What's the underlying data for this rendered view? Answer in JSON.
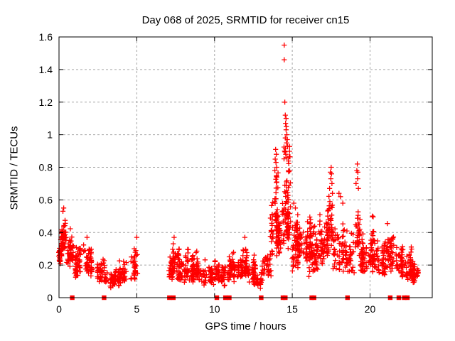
{
  "window": {
    "title": "Day 068 of 2025, SRMTID for receiver cn15"
  },
  "chart": {
    "title": "Day 068 of 2025, SRMTID for receiver cn15",
    "xlabel": "GPS time / hours",
    "ylabel": "SRMTID / TECUs"
  },
  "colors": {
    "marker": "#ff0000",
    "axis": "#000000",
    "grid": "#a6a6a6",
    "background": "#ffffff",
    "text": "#000000"
  },
  "chart_data": {
    "type": "scatter",
    "marker_style": "plus",
    "title": "Day 068 of 2025, SRMTID for receiver cn15",
    "xlabel": "GPS time / hours",
    "ylabel": "SRMTID / TECUs",
    "xlim": [
      0,
      24
    ],
    "ylim": [
      0,
      1.6
    ],
    "xticks": [
      {
        "v": 0,
        "label": "0"
      },
      {
        "v": 5,
        "label": "5"
      },
      {
        "v": 10,
        "label": "10"
      },
      {
        "v": 15,
        "label": "15"
      },
      {
        "v": 20,
        "label": "20"
      }
    ],
    "yticks": [
      {
        "v": 0,
        "label": "0"
      },
      {
        "v": 0.2,
        "label": "0.2"
      },
      {
        "v": 0.4,
        "label": "0.4"
      },
      {
        "v": 0.6,
        "label": "0.6"
      },
      {
        "v": 0.8,
        "label": "0.8"
      },
      {
        "v": 1.0,
        "label": "1"
      },
      {
        "v": 1.2,
        "label": "1.2"
      },
      {
        "v": 1.4,
        "label": "1.4"
      },
      {
        "v": 1.6,
        "label": "1.6"
      }
    ],
    "grid": true,
    "legend": "none",
    "outlier_points": [
      [
        14.48,
        1.55
      ],
      [
        14.48,
        1.46
      ],
      [
        14.52,
        1.2
      ],
      [
        14.55,
        1.12
      ],
      [
        14.6,
        1.1
      ],
      [
        14.57,
        1.07
      ],
      [
        14.62,
        1.05
      ],
      [
        14.6,
        1.03
      ],
      [
        14.65,
        1.0
      ],
      [
        14.55,
        0.98
      ],
      [
        14.68,
        0.97
      ],
      [
        14.63,
        0.95
      ],
      [
        14.7,
        0.93
      ],
      [
        14.5,
        0.9
      ],
      [
        14.58,
        0.88
      ],
      [
        14.66,
        0.86
      ],
      [
        13.93,
        0.91
      ],
      [
        13.97,
        0.88
      ],
      [
        13.9,
        0.85
      ],
      [
        13.95,
        0.83
      ],
      [
        14.0,
        0.8
      ],
      [
        13.88,
        0.78
      ],
      [
        19.18,
        0.82
      ],
      [
        19.15,
        0.78
      ],
      [
        19.22,
        0.77
      ],
      [
        19.2,
        0.73
      ],
      [
        19.1,
        0.7
      ],
      [
        19.25,
        0.67
      ],
      [
        17.5,
        0.8
      ],
      [
        17.45,
        0.77
      ],
      [
        17.52,
        0.76
      ],
      [
        17.48,
        0.73
      ],
      [
        17.55,
        0.7
      ],
      [
        17.4,
        0.67
      ],
      [
        17.58,
        0.64
      ],
      [
        18.0,
        0.64
      ],
      [
        18.1,
        0.62
      ],
      [
        18.25,
        0.58
      ],
      [
        15.1,
        0.58
      ],
      [
        15.2,
        0.55
      ],
      [
        16.07,
        0.13
      ],
      [
        16.12,
        0.16
      ],
      [
        0.3,
        0.55
      ],
      [
        0.25,
        0.53
      ],
      [
        5.0,
        0.37
      ],
      [
        7.4,
        0.37
      ],
      [
        11.95,
        0.37
      ],
      [
        1.8,
        0.37
      ]
    ],
    "clusters": [
      {
        "x": [
          0.0,
          0.15
        ],
        "y": [
          0.2,
          0.32
        ],
        "n": 25
      },
      {
        "x": [
          0.15,
          0.55
        ],
        "y": [
          0.25,
          0.53
        ],
        "n": 60
      },
      {
        "x": [
          0.5,
          0.95
        ],
        "y": [
          0.18,
          0.45
        ],
        "n": 45
      },
      {
        "x": [
          0.95,
          1.5
        ],
        "y": [
          0.1,
          0.33
        ],
        "n": 50
      },
      {
        "x": [
          1.5,
          2.2
        ],
        "y": [
          0.12,
          0.36
        ],
        "n": 55
      },
      {
        "x": [
          2.2,
          3.1
        ],
        "y": [
          0.08,
          0.26
        ],
        "n": 55
      },
      {
        "x": [
          3.1,
          3.9
        ],
        "y": [
          0.06,
          0.2
        ],
        "n": 50
      },
      {
        "x": [
          3.9,
          4.6
        ],
        "y": [
          0.07,
          0.24
        ],
        "n": 45
      },
      {
        "x": [
          4.6,
          5.2
        ],
        "y": [
          0.1,
          0.35
        ],
        "n": 40
      },
      {
        "x": [
          7.0,
          7.35
        ],
        "y": [
          0.1,
          0.27
        ],
        "n": 30
      },
      {
        "x": [
          7.3,
          7.55
        ],
        "y": [
          0.13,
          0.36
        ],
        "n": 25
      },
      {
        "x": [
          7.55,
          8.1
        ],
        "y": [
          0.08,
          0.31
        ],
        "n": 45
      },
      {
        "x": [
          8.1,
          8.6
        ],
        "y": [
          0.1,
          0.33
        ],
        "n": 40
      },
      {
        "x": [
          8.6,
          9.1
        ],
        "y": [
          0.08,
          0.3
        ],
        "n": 40
      },
      {
        "x": [
          9.1,
          10.15
        ],
        "y": [
          0.07,
          0.24
        ],
        "n": 70
      },
      {
        "x": [
          10.15,
          10.75
        ],
        "y": [
          0.07,
          0.21
        ],
        "n": 45
      },
      {
        "x": [
          10.75,
          11.25
        ],
        "y": [
          0.09,
          0.3
        ],
        "n": 45
      },
      {
        "x": [
          11.25,
          11.8
        ],
        "y": [
          0.1,
          0.28
        ],
        "n": 40
      },
      {
        "x": [
          11.8,
          12.1
        ],
        "y": [
          0.12,
          0.35
        ],
        "n": 30
      },
      {
        "x": [
          12.1,
          12.6
        ],
        "y": [
          0.08,
          0.28
        ],
        "n": 40
      },
      {
        "x": [
          12.6,
          13.1
        ],
        "y": [
          0.05,
          0.17
        ],
        "n": 35
      },
      {
        "x": [
          13.1,
          13.6
        ],
        "y": [
          0.1,
          0.35
        ],
        "n": 40
      },
      {
        "x": [
          13.6,
          14.05
        ],
        "y": [
          0.25,
          0.7
        ],
        "n": 55
      },
      {
        "x": [
          13.85,
          14.05
        ],
        "y": [
          0.62,
          0.8
        ],
        "n": 10
      },
      {
        "x": [
          14.05,
          14.35
        ],
        "y": [
          0.25,
          0.55
        ],
        "n": 30
      },
      {
        "x": [
          14.35,
          14.85
        ],
        "y": [
          0.25,
          0.85
        ],
        "n": 90
      },
      {
        "x": [
          14.5,
          14.8
        ],
        "y": [
          0.78,
          1.0
        ],
        "n": 10
      },
      {
        "x": [
          14.85,
          15.35
        ],
        "y": [
          0.15,
          0.58
        ],
        "n": 45
      },
      {
        "x": [
          15.35,
          16.25
        ],
        "y": [
          0.18,
          0.55
        ],
        "n": 110
      },
      {
        "x": [
          16.25,
          16.6
        ],
        "y": [
          0.15,
          0.5
        ],
        "n": 45
      },
      {
        "x": [
          16.6,
          17.3
        ],
        "y": [
          0.2,
          0.55
        ],
        "n": 60
      },
      {
        "x": [
          17.3,
          17.65
        ],
        "y": [
          0.3,
          0.72
        ],
        "n": 35
      },
      {
        "x": [
          17.65,
          18.4
        ],
        "y": [
          0.15,
          0.52
        ],
        "n": 55
      },
      {
        "x": [
          18.4,
          18.95
        ],
        "y": [
          0.12,
          0.45
        ],
        "n": 45
      },
      {
        "x": [
          18.95,
          19.35
        ],
        "y": [
          0.25,
          0.66
        ],
        "n": 35
      },
      {
        "x": [
          19.35,
          20.1
        ],
        "y": [
          0.12,
          0.45
        ],
        "n": 60
      },
      {
        "x": [
          20.1,
          20.45
        ],
        "y": [
          0.15,
          0.55
        ],
        "n": 35
      },
      {
        "x": [
          20.45,
          21.1
        ],
        "y": [
          0.12,
          0.4
        ],
        "n": 55
      },
      {
        "x": [
          21.1,
          21.6
        ],
        "y": [
          0.15,
          0.48
        ],
        "n": 45
      },
      {
        "x": [
          21.6,
          22.2
        ],
        "y": [
          0.12,
          0.42
        ],
        "n": 50
      },
      {
        "x": [
          22.2,
          22.75
        ],
        "y": [
          0.1,
          0.32
        ],
        "n": 50
      },
      {
        "x": [
          22.75,
          23.1
        ],
        "y": [
          0.08,
          0.22
        ],
        "n": 30
      }
    ],
    "zero_markers_x": [
      0.85,
      2.9,
      7.1,
      7.35,
      10.15,
      10.7,
      10.95,
      13.0,
      14.4,
      14.55,
      16.25,
      16.4,
      18.55,
      21.3,
      21.85,
      22.2,
      22.4
    ]
  }
}
